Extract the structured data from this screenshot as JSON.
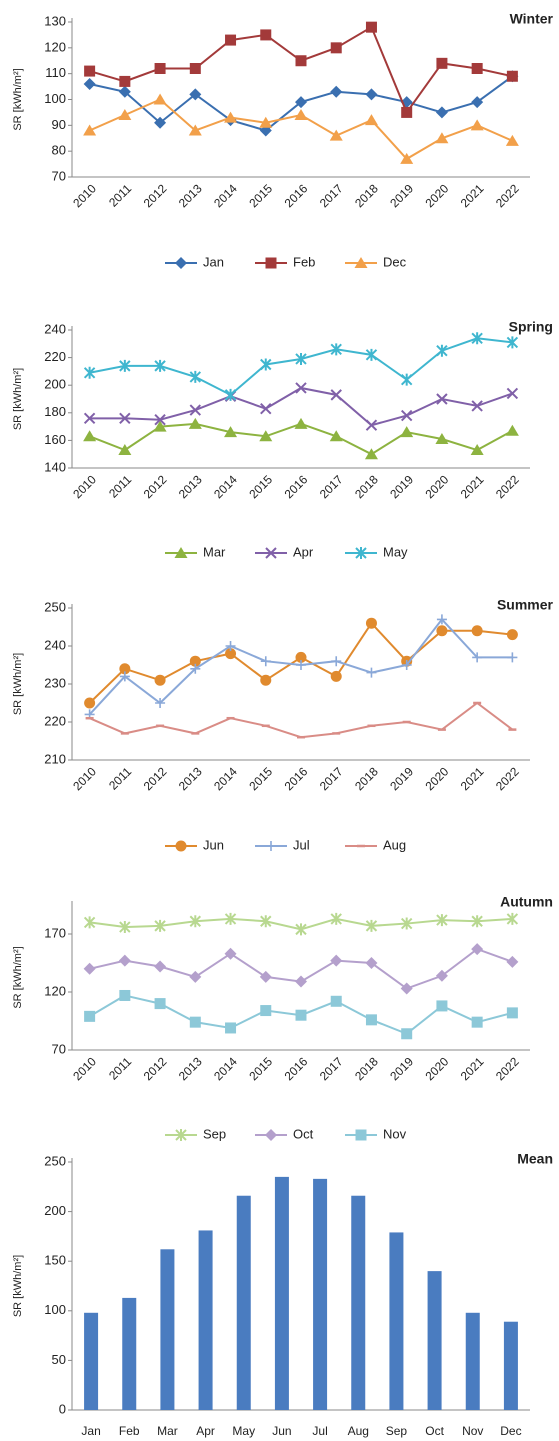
{
  "chart_data": [
    {
      "type": "line",
      "title": "Winter",
      "ylabel": "SR [kWh/m²]",
      "categories": [
        "2010",
        "2011",
        "2012",
        "2013",
        "2014",
        "2015",
        "2016",
        "2017",
        "2018",
        "2019",
        "2020",
        "2021",
        "2022"
      ],
      "ylim": [
        70,
        130
      ],
      "yticks": [
        70,
        80,
        90,
        100,
        110,
        120,
        130
      ],
      "legend": "bottom",
      "series": [
        {
          "name": "Jan",
          "color": "#3a6fb0",
          "marker": "diamond",
          "values": [
            106,
            103,
            91,
            102,
            92,
            88,
            99,
            103,
            102,
            99,
            95,
            99,
            109
          ]
        },
        {
          "name": "Feb",
          "color": "#a33a3a",
          "marker": "square",
          "values": [
            111,
            107,
            112,
            112,
            123,
            125,
            115,
            120,
            128,
            95,
            114,
            112,
            109
          ]
        },
        {
          "name": "Dec",
          "color": "#f2a04a",
          "marker": "triangle",
          "values": [
            88,
            94,
            100,
            88,
            93,
            91,
            94,
            86,
            92,
            77,
            85,
            90,
            84
          ]
        }
      ]
    },
    {
      "type": "line",
      "title": "Spring",
      "ylabel": "SR [kWh/m²]",
      "categories": [
        "2010",
        "2011",
        "2012",
        "2013",
        "2014",
        "2015",
        "2016",
        "2017",
        "2018",
        "2019",
        "2020",
        "2021",
        "2022"
      ],
      "ylim": [
        140,
        240
      ],
      "yticks": [
        140,
        160,
        180,
        200,
        220,
        240
      ],
      "legend": "bottom",
      "series": [
        {
          "name": "Mar",
          "color": "#8db340",
          "marker": "triangle",
          "values": [
            163,
            153,
            170,
            172,
            166,
            163,
            172,
            163,
            150,
            166,
            161,
            153,
            167
          ]
        },
        {
          "name": "Apr",
          "color": "#8060a8",
          "marker": "x",
          "values": [
            176,
            176,
            175,
            182,
            192,
            183,
            198,
            193,
            171,
            178,
            190,
            185,
            194
          ]
        },
        {
          "name": "May",
          "color": "#3fb6cf",
          "marker": "star",
          "values": [
            209,
            214,
            214,
            206,
            193,
            215,
            219,
            226,
            222,
            204,
            225,
            234,
            231
          ]
        }
      ]
    },
    {
      "type": "line",
      "title": "Summer",
      "ylabel": "SR [kWh/m²]",
      "categories": [
        "2010",
        "2011",
        "2012",
        "2013",
        "2014",
        "2015",
        "2016",
        "2017",
        "2018",
        "2019",
        "2020",
        "2021",
        "2022"
      ],
      "ylim": [
        210,
        250
      ],
      "yticks": [
        210,
        220,
        230,
        240,
        250
      ],
      "legend": "bottom",
      "series": [
        {
          "name": "Jun",
          "color": "#e08a2e",
          "marker": "circle",
          "values": [
            225,
            234,
            231,
            236,
            238,
            231,
            237,
            232,
            246,
            236,
            244,
            244,
            243
          ]
        },
        {
          "name": "Jul",
          "color": "#8aa8d8",
          "marker": "plus",
          "values": [
            222,
            232,
            225,
            234,
            240,
            236,
            235,
            236,
            233,
            235,
            247,
            237,
            237
          ]
        },
        {
          "name": "Aug",
          "color": "#d98c86",
          "marker": "dash",
          "values": [
            221,
            217,
            219,
            217,
            221,
            219,
            216,
            217,
            219,
            220,
            218,
            225,
            218
          ]
        }
      ]
    },
    {
      "type": "line",
      "title": "Autumn",
      "ylabel": "SR [kWh/m²]",
      "categories": [
        "2010",
        "2011",
        "2012",
        "2013",
        "2014",
        "2015",
        "2016",
        "2017",
        "2018",
        "2019",
        "2020",
        "2021",
        "2022"
      ],
      "ylim": [
        70,
        195
      ],
      "yticks": [
        70,
        120,
        170
      ],
      "legend": "bottom",
      "series": [
        {
          "name": "Sep",
          "color": "#b8d890",
          "marker": "star",
          "values": [
            180,
            176,
            177,
            181,
            183,
            181,
            174,
            183,
            177,
            179,
            182,
            181,
            183
          ]
        },
        {
          "name": "Oct",
          "color": "#b4a0cc",
          "marker": "diamond",
          "values": [
            140,
            147,
            142,
            133,
            153,
            133,
            129,
            147,
            145,
            123,
            134,
            157,
            146
          ]
        },
        {
          "name": "Nov",
          "color": "#8cc8d8",
          "marker": "square",
          "values": [
            99,
            117,
            110,
            94,
            89,
            104,
            100,
            112,
            96,
            84,
            108,
            94,
            102
          ]
        }
      ]
    },
    {
      "type": "bar",
      "title": "Mean",
      "ylabel": "SR [kWh/m²]",
      "categories": [
        "Jan",
        "Feb",
        "Mar",
        "Apr",
        "May",
        "Jun",
        "Jul",
        "Aug",
        "Sep",
        "Oct",
        "Nov",
        "Dec"
      ],
      "ylim": [
        0,
        250
      ],
      "yticks": [
        0,
        50,
        100,
        150,
        200,
        250
      ],
      "color": "#4a7cc0",
      "values": [
        98,
        113,
        162,
        181,
        216,
        235,
        233,
        216,
        179,
        140,
        98,
        89
      ]
    }
  ]
}
